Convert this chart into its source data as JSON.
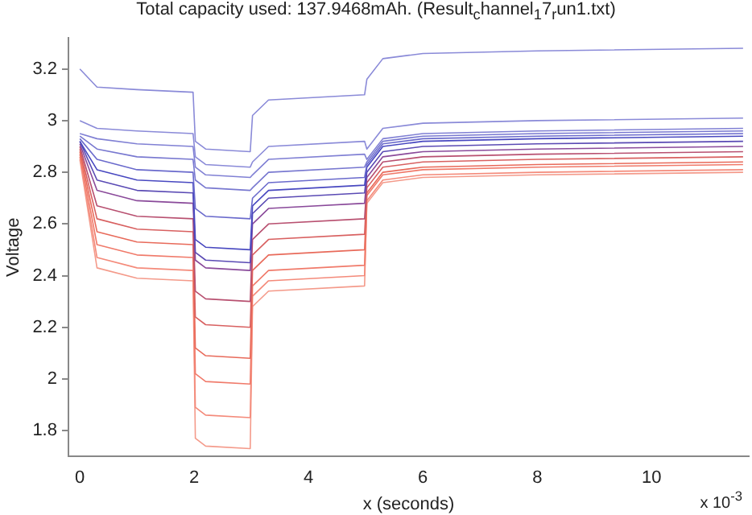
{
  "chart_data": {
    "type": "line",
    "title": "Total capacity used: 137.9468mAh. (Result$_{c}$hannel$_{1}$7$_{r}$un1.txt)",
    "xlabel": "x (seconds)",
    "ylabel": "Voltage",
    "annotations": [
      "x 10$^{-3}$"
    ],
    "x": [
      0,
      0.3,
      1,
      1.98,
      2.02,
      2.2,
      2.98,
      3.02,
      3.3,
      4.98,
      5.02,
      5.3,
      6,
      8,
      11.6
    ],
    "xlim": [
      -0.2,
      11.7
    ],
    "xticks": [
      0,
      2,
      4,
      6,
      8,
      10
    ],
    "ylim": [
      1.7,
      3.32
    ],
    "yticks": [
      1.8,
      2,
      2.2,
      2.4,
      2.6,
      2.8,
      3,
      3.2
    ],
    "grid": false,
    "legend": false,
    "marker": "none",
    "line_style": "solid",
    "series": [
      {
        "color": "#8a8ad8",
        "values": [
          3.2,
          3.13,
          3.12,
          3.11,
          2.92,
          2.89,
          2.88,
          3.02,
          3.08,
          3.1,
          3.16,
          3.24,
          3.26,
          3.27,
          3.28
        ]
      },
      {
        "color": "#8a8ad8",
        "values": [
          3.0,
          2.97,
          2.96,
          2.95,
          2.86,
          2.83,
          2.82,
          2.84,
          2.9,
          2.92,
          2.89,
          2.97,
          2.99,
          3.0,
          3.01
        ]
      },
      {
        "color": "#8080d4",
        "values": [
          2.95,
          2.93,
          2.91,
          2.9,
          2.82,
          2.79,
          2.78,
          2.79,
          2.85,
          2.87,
          2.85,
          2.93,
          2.95,
          2.96,
          2.97
        ]
      },
      {
        "color": "#7878d0",
        "values": [
          2.94,
          2.89,
          2.86,
          2.85,
          2.77,
          2.74,
          2.73,
          2.74,
          2.8,
          2.82,
          2.84,
          2.92,
          2.94,
          2.95,
          2.96
        ]
      },
      {
        "color": "#6a6acc",
        "values": [
          2.93,
          2.85,
          2.81,
          2.8,
          2.66,
          2.63,
          2.62,
          2.7,
          2.76,
          2.78,
          2.83,
          2.91,
          2.93,
          2.94,
          2.95
        ]
      },
      {
        "color": "#4848c0",
        "values": [
          2.92,
          2.81,
          2.77,
          2.76,
          2.54,
          2.51,
          2.5,
          2.67,
          2.73,
          2.75,
          2.82,
          2.9,
          2.92,
          2.93,
          2.94
        ]
      },
      {
        "color": "#5a4ab4",
        "values": [
          2.92,
          2.77,
          2.73,
          2.72,
          2.49,
          2.46,
          2.45,
          2.64,
          2.7,
          2.72,
          2.8,
          2.88,
          2.9,
          2.91,
          2.92
        ]
      },
      {
        "color": "#8a4a9a",
        "values": [
          2.91,
          2.73,
          2.69,
          2.68,
          2.46,
          2.43,
          2.42,
          2.6,
          2.66,
          2.68,
          2.78,
          2.86,
          2.88,
          2.89,
          2.9
        ]
      },
      {
        "color": "#b85070",
        "values": [
          2.9,
          2.67,
          2.63,
          2.62,
          2.34,
          2.31,
          2.3,
          2.54,
          2.6,
          2.62,
          2.76,
          2.84,
          2.86,
          2.87,
          2.88
        ]
      },
      {
        "color": "#d86060",
        "values": [
          2.89,
          2.62,
          2.58,
          2.57,
          2.24,
          2.21,
          2.2,
          2.48,
          2.54,
          2.56,
          2.74,
          2.82,
          2.84,
          2.85,
          2.86
        ]
      },
      {
        "color": "#e86a5a",
        "values": [
          2.88,
          2.57,
          2.53,
          2.52,
          2.12,
          2.09,
          2.08,
          2.42,
          2.48,
          2.5,
          2.72,
          2.8,
          2.82,
          2.83,
          2.84
        ]
      },
      {
        "color": "#f07a6a",
        "values": [
          2.87,
          2.52,
          2.48,
          2.47,
          2.02,
          1.99,
          1.98,
          2.36,
          2.42,
          2.44,
          2.71,
          2.79,
          2.81,
          2.82,
          2.83
        ]
      },
      {
        "color": "#f48a7a",
        "values": [
          2.86,
          2.47,
          2.43,
          2.42,
          1.89,
          1.86,
          1.85,
          2.32,
          2.38,
          2.4,
          2.69,
          2.77,
          2.79,
          2.8,
          2.81
        ]
      },
      {
        "color": "#f49a8a",
        "values": [
          2.85,
          2.43,
          2.39,
          2.38,
          1.77,
          1.74,
          1.73,
          2.28,
          2.34,
          2.36,
          2.68,
          2.76,
          2.78,
          2.79,
          2.8
        ]
      }
    ]
  }
}
